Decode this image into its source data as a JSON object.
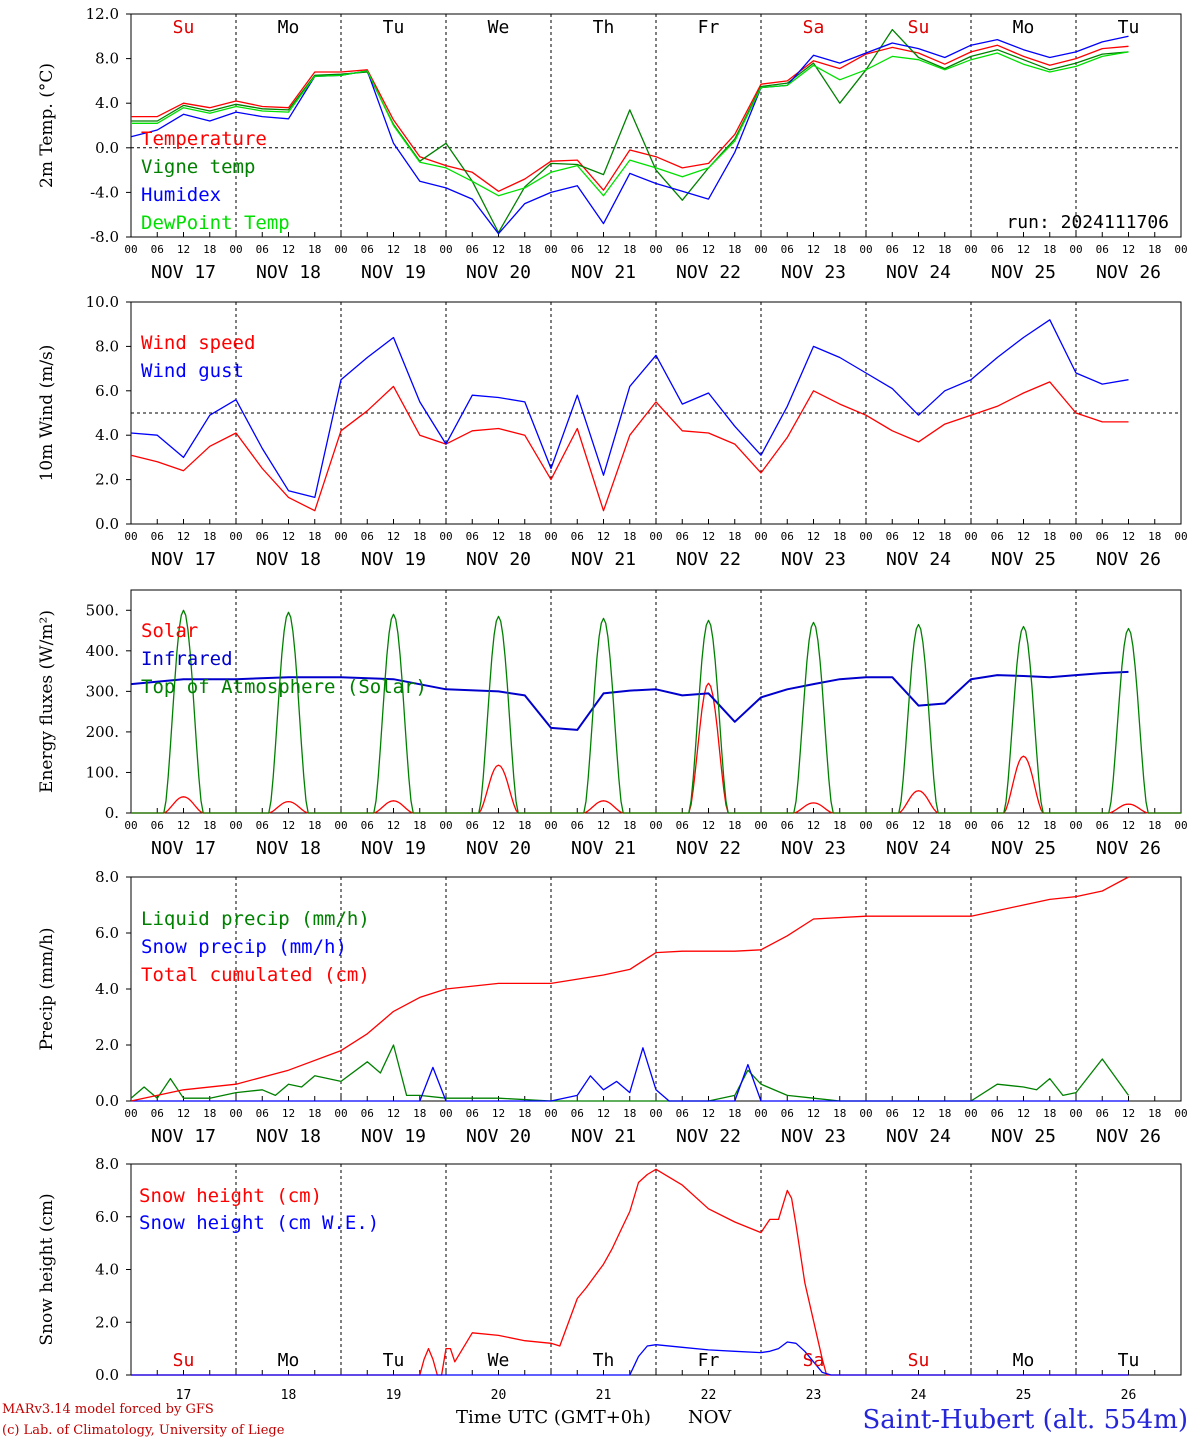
{
  "days": {
    "dates": [
      "NOV 17",
      "NOV 18",
      "NOV 19",
      "NOV 20",
      "NOV 21",
      "NOV 22",
      "NOV 23",
      "NOV 24",
      "NOV 25",
      "NOV 26"
    ],
    "hour_labels": [
      "00",
      "06",
      "12",
      "18"
    ],
    "hour_end": "00",
    "weekdays": [
      "Su",
      "Mo",
      "Tu",
      "We",
      "Th",
      "Fr",
      "Sa",
      "Su",
      "Mo",
      "Tu"
    ],
    "weekday_colors": [
      "#e00000",
      "#000000",
      "#000000",
      "#000000",
      "#000000",
      "#000000",
      "#e00000",
      "#e00000",
      "#000000",
      "#000000"
    ],
    "day_numbers": [
      "17",
      "18",
      "19",
      "20",
      "21",
      "22",
      "23",
      "24",
      "25",
      "26"
    ]
  },
  "run_label": "run: 2024111706",
  "footer": {
    "model": "MARv3.14 model forced by GFS",
    "lab": "(c) Lab. of Climatology, University of Liege",
    "axis": "Time UTC (GMT+0h)",
    "month": "NOV",
    "station": "Saint-Hubert (alt. 554m)"
  },
  "chart_data": [
    {
      "type": "line",
      "ylabel": "2m Temp. (°C)",
      "ylim": [
        -8,
        12
      ],
      "yticks": [
        "12.0",
        "8.0",
        "4.0",
        "0.0",
        "-4.0",
        "-8.0"
      ],
      "ytick_values": [
        12,
        8,
        4,
        0,
        -4,
        -8
      ],
      "ref_line": 0,
      "x_unit": "hours since NOV 17 00 UTC",
      "series": [
        {
          "name": "Temperature",
          "color": "#ff0000",
          "x": [
            0,
            6,
            12,
            18,
            24,
            30,
            36,
            42,
            48,
            54,
            60,
            66,
            72,
            78,
            84,
            90,
            96,
            102,
            108,
            114,
            120,
            126,
            132,
            138,
            144,
            150,
            156,
            162,
            168,
            174,
            180,
            186,
            192,
            198,
            204,
            210,
            216,
            222,
            228
          ],
          "y": [
            2.8,
            2.8,
            4.0,
            3.6,
            4.2,
            3.7,
            3.6,
            6.8,
            6.8,
            7.0,
            2.5,
            -0.8,
            -1.6,
            -2.2,
            -3.9,
            -2.8,
            -1.2,
            -1.1,
            -3.8,
            -0.2,
            -0.8,
            -1.8,
            -1.4,
            1.2,
            5.7,
            6.0,
            7.8,
            7.1,
            8.4,
            9.0,
            8.5,
            7.5,
            8.6,
            9.2,
            8.2,
            7.4,
            8.0,
            8.9,
            9.1
          ]
        },
        {
          "name": "Vigne temp",
          "color": "#008000",
          "x": [
            0,
            6,
            12,
            18,
            24,
            30,
            36,
            42,
            48,
            54,
            60,
            66,
            72,
            78,
            84,
            90,
            96,
            102,
            108,
            114,
            120,
            126,
            132,
            138,
            144,
            150,
            156,
            162,
            168,
            174,
            180,
            186,
            192,
            198,
            204,
            210,
            216,
            222,
            228
          ],
          "y": [
            2.4,
            2.4,
            3.8,
            3.3,
            3.9,
            3.5,
            3.4,
            6.5,
            6.6,
            6.8,
            2.1,
            -1.2,
            0.4,
            -3.0,
            -7.6,
            -3.5,
            -1.4,
            -1.5,
            -2.4,
            3.4,
            -2.0,
            -4.7,
            -1.8,
            0.8,
            5.5,
            5.8,
            7.6,
            4.0,
            7.0,
            10.6,
            8.1,
            7.1,
            8.2,
            8.8,
            7.9,
            7.0,
            7.6,
            8.4,
            8.6
          ]
        },
        {
          "name": "Humidex",
          "color": "#0000ff",
          "x": [
            0,
            6,
            12,
            18,
            24,
            30,
            36,
            42,
            48,
            54,
            60,
            66,
            72,
            78,
            84,
            90,
            96,
            102,
            108,
            114,
            120,
            126,
            132,
            138,
            144,
            150,
            156,
            162,
            168,
            174,
            180,
            186,
            192,
            198,
            204,
            210,
            216,
            222,
            228
          ],
          "y": [
            1.0,
            1.6,
            3.0,
            2.4,
            3.2,
            2.8,
            2.6,
            6.4,
            6.5,
            6.9,
            0.4,
            -3.0,
            -3.6,
            -4.6,
            -7.7,
            -5.0,
            -4.0,
            -3.4,
            -6.8,
            -2.3,
            -3.2,
            -3.9,
            -4.6,
            -0.4,
            5.4,
            5.6,
            8.3,
            7.6,
            8.5,
            9.4,
            8.9,
            8.1,
            9.2,
            9.7,
            8.8,
            8.1,
            8.6,
            9.5,
            10.0
          ]
        },
        {
          "name": "DewPoint Temp",
          "color": "#00e000",
          "x": [
            0,
            6,
            12,
            18,
            24,
            30,
            36,
            42,
            48,
            54,
            60,
            66,
            72,
            78,
            84,
            90,
            96,
            102,
            108,
            114,
            120,
            126,
            132,
            138,
            144,
            150,
            156,
            162,
            168,
            174,
            180,
            186,
            192,
            198,
            204,
            210,
            216,
            222,
            228
          ],
          "y": [
            2.2,
            2.2,
            3.6,
            3.1,
            3.7,
            3.3,
            3.2,
            6.4,
            6.5,
            6.9,
            2.0,
            -1.3,
            -1.8,
            -3.0,
            -4.3,
            -3.6,
            -2.2,
            -1.6,
            -4.3,
            -1.1,
            -1.8,
            -2.6,
            -1.8,
            0.6,
            5.4,
            5.6,
            7.4,
            6.1,
            7.0,
            8.2,
            7.9,
            7.0,
            7.9,
            8.5,
            7.5,
            6.8,
            7.3,
            8.2,
            8.6
          ]
        }
      ]
    },
    {
      "type": "line",
      "ylabel": "10m Wind (m/s)",
      "ylim": [
        0,
        10
      ],
      "yticks": [
        "10.0",
        "8.0",
        "6.0",
        "4.0",
        "2.0",
        "0.0"
      ],
      "ytick_values": [
        10,
        8,
        6,
        4,
        2,
        0
      ],
      "ref_line": 5,
      "x_unit": "hours since NOV 17 00 UTC",
      "series": [
        {
          "name": "Wind speed",
          "color": "#ff0000",
          "x": [
            0,
            6,
            12,
            18,
            24,
            30,
            36,
            42,
            48,
            54,
            60,
            66,
            72,
            78,
            84,
            90,
            96,
            102,
            108,
            114,
            120,
            126,
            132,
            138,
            144,
            150,
            156,
            162,
            168,
            174,
            180,
            186,
            192,
            198,
            204,
            210,
            216,
            222,
            228
          ],
          "y": [
            3.1,
            2.8,
            2.4,
            3.5,
            4.1,
            2.5,
            1.2,
            0.6,
            4.2,
            5.1,
            6.2,
            4.0,
            3.6,
            4.2,
            4.3,
            4.0,
            2.0,
            4.3,
            0.6,
            4.0,
            5.5,
            4.2,
            4.1,
            3.6,
            2.3,
            3.9,
            6.0,
            5.4,
            4.9,
            4.2,
            3.7,
            4.5,
            4.9,
            5.3,
            5.9,
            6.4,
            5.0,
            4.6,
            4.6
          ]
        },
        {
          "name": "Wind gust",
          "color": "#0000ff",
          "x": [
            0,
            6,
            12,
            18,
            24,
            30,
            36,
            42,
            48,
            54,
            60,
            66,
            72,
            78,
            84,
            90,
            96,
            102,
            108,
            114,
            120,
            126,
            132,
            138,
            144,
            150,
            156,
            162,
            168,
            174,
            180,
            186,
            192,
            198,
            204,
            210,
            216,
            222,
            228
          ],
          "y": [
            4.1,
            4.0,
            3.0,
            4.9,
            5.6,
            3.4,
            1.5,
            1.2,
            6.5,
            7.5,
            8.4,
            5.5,
            3.6,
            5.8,
            5.7,
            5.5,
            2.5,
            5.8,
            2.2,
            6.2,
            7.6,
            5.4,
            5.9,
            4.4,
            3.1,
            5.3,
            8.0,
            7.5,
            6.8,
            6.1,
            4.9,
            6.0,
            6.5,
            7.5,
            8.4,
            9.2,
            6.8,
            6.3,
            6.5
          ]
        }
      ]
    },
    {
      "type": "line",
      "ylabel": "Energy fluxes (W/m²)",
      "ylim": [
        0,
        550
      ],
      "yticks": [
        "500.",
        "400.",
        "300.",
        "200.",
        "100.",
        "0."
      ],
      "ytick_values": [
        500,
        400,
        300,
        200,
        100,
        0
      ],
      "ref_line": null,
      "x_unit": "hours since NOV 17 00 UTC",
      "series": [
        {
          "name": "Solar",
          "color": "#ff0000",
          "style": "diurnal",
          "peaks": [
            40,
            28,
            30,
            118,
            30,
            320,
            25,
            55,
            140,
            22
          ]
        },
        {
          "name": "Infrared",
          "color": "#0000cc",
          "width": 2,
          "x": [
            0,
            12,
            24,
            36,
            48,
            60,
            72,
            84,
            90,
            96,
            102,
            108,
            114,
            120,
            126,
            132,
            138,
            144,
            150,
            156,
            162,
            168,
            174,
            180,
            186,
            192,
            198,
            204,
            210,
            216,
            222,
            228
          ],
          "y": [
            318,
            330,
            330,
            335,
            335,
            330,
            305,
            300,
            290,
            210,
            205,
            295,
            302,
            305,
            290,
            295,
            225,
            285,
            305,
            318,
            330,
            335,
            335,
            265,
            270,
            330,
            340,
            338,
            335,
            340,
            345,
            348
          ]
        },
        {
          "name": "Top of Atmosphere (Solar)",
          "color": "#008000",
          "style": "diurnal",
          "peaks": [
            500,
            495,
            490,
            485,
            480,
            475,
            470,
            465,
            460,
            455
          ]
        }
      ]
    },
    {
      "type": "line",
      "ylabel": "Precip (mm/h)",
      "ylim": [
        0,
        8
      ],
      "yticks": [
        "8.0",
        "6.0",
        "4.0",
        "2.0",
        "0.0"
      ],
      "ytick_values": [
        8,
        6,
        4,
        2,
        0
      ],
      "ref_line": null,
      "x_unit": "hours since NOV 17 00 UTC",
      "series": [
        {
          "name": "Liquid precip (mm/h)",
          "color": "#008000",
          "x": [
            0,
            3,
            6,
            9,
            12,
            18,
            24,
            30,
            33,
            36,
            39,
            42,
            48,
            54,
            57,
            60,
            63,
            66,
            72,
            84,
            96,
            108,
            114,
            120,
            126,
            132,
            138,
            141,
            144,
            150,
            156,
            162,
            168,
            180,
            186,
            192,
            198,
            204,
            207,
            210,
            213,
            216,
            222,
            228
          ],
          "y": [
            0.1,
            0.5,
            0.1,
            0.8,
            0.1,
            0.1,
            0.3,
            0.4,
            0.2,
            0.6,
            0.5,
            0.9,
            0.7,
            1.4,
            1.0,
            2.0,
            0.2,
            0.2,
            0.1,
            0.1,
            0.0,
            0.0,
            0.0,
            0.0,
            0.0,
            0.0,
            0.2,
            1.1,
            0.6,
            0.2,
            0.1,
            0.0,
            0.0,
            0.0,
            0.0,
            0.0,
            0.6,
            0.5,
            0.4,
            0.8,
            0.2,
            0.3,
            1.5,
            0.2
          ]
        },
        {
          "name": "Snow precip (mm/h)",
          "color": "#0000ff",
          "x": [
            0,
            48,
            60,
            66,
            69,
            72,
            96,
            102,
            105,
            108,
            111,
            114,
            117,
            120,
            123,
            126,
            138,
            141,
            144,
            150,
            228
          ],
          "y": [
            0,
            0,
            0,
            0,
            1.2,
            0,
            0,
            0.2,
            0.9,
            0.4,
            0.7,
            0.3,
            1.9,
            0.4,
            0,
            0,
            0,
            1.3,
            0,
            0,
            0
          ]
        },
        {
          "name": "Total cumulated (cm)",
          "color": "#ff0000",
          "x": [
            0,
            12,
            24,
            36,
            48,
            54,
            60,
            66,
            72,
            84,
            96,
            108,
            114,
            120,
            126,
            138,
            144,
            150,
            156,
            168,
            180,
            192,
            198,
            204,
            210,
            216,
            222,
            228
          ],
          "y": [
            0.0,
            0.4,
            0.6,
            1.1,
            1.8,
            2.4,
            3.2,
            3.7,
            4.0,
            4.2,
            4.2,
            4.5,
            4.7,
            5.3,
            5.35,
            5.35,
            5.4,
            5.9,
            6.5,
            6.6,
            6.6,
            6.6,
            6.8,
            7.0,
            7.2,
            7.3,
            7.5,
            8.0
          ]
        }
      ]
    },
    {
      "type": "line",
      "ylabel": "Snow height (cm)",
      "ylim": [
        0,
        8
      ],
      "yticks": [
        "8.0",
        "6.0",
        "4.0",
        "2.0",
        "0.0"
      ],
      "ytick_values": [
        8,
        6,
        4,
        2,
        0
      ],
      "ref_line": null,
      "x_unit": "hours since NOV 17 00 UTC",
      "series": [
        {
          "name": "Snow height (cm)",
          "color": "#ff0000",
          "x": [
            0,
            66,
            67,
            68,
            69,
            70,
            71,
            72,
            73,
            74,
            78,
            84,
            90,
            96,
            98,
            102,
            104,
            108,
            110,
            112,
            114,
            116,
            118,
            120,
            126,
            132,
            138,
            144,
            146,
            148,
            150,
            151,
            152,
            154,
            158,
            159,
            160,
            228
          ],
          "y": [
            0,
            0,
            0.6,
            1.0,
            0.6,
            0,
            0,
            1.0,
            1.0,
            0.5,
            1.6,
            1.5,
            1.3,
            1.2,
            1.1,
            2.9,
            3.3,
            4.2,
            4.8,
            5.5,
            6.2,
            7.3,
            7.6,
            7.8,
            7.2,
            6.3,
            5.8,
            5.4,
            5.9,
            5.9,
            7.0,
            6.7,
            5.7,
            3.5,
            0.6,
            0,
            0,
            0
          ]
        },
        {
          "name": "Snow height (cm W.E.)",
          "color": "#0000ff",
          "x": [
            0,
            114,
            116,
            118,
            120,
            126,
            132,
            138,
            144,
            146,
            148,
            150,
            152,
            154,
            156,
            158,
            160,
            228
          ],
          "y": [
            0,
            0,
            0.7,
            1.1,
            1.15,
            1.05,
            0.95,
            0.9,
            0.85,
            0.9,
            1.0,
            1.25,
            1.2,
            0.9,
            0.5,
            0.1,
            0,
            0
          ]
        }
      ]
    }
  ]
}
